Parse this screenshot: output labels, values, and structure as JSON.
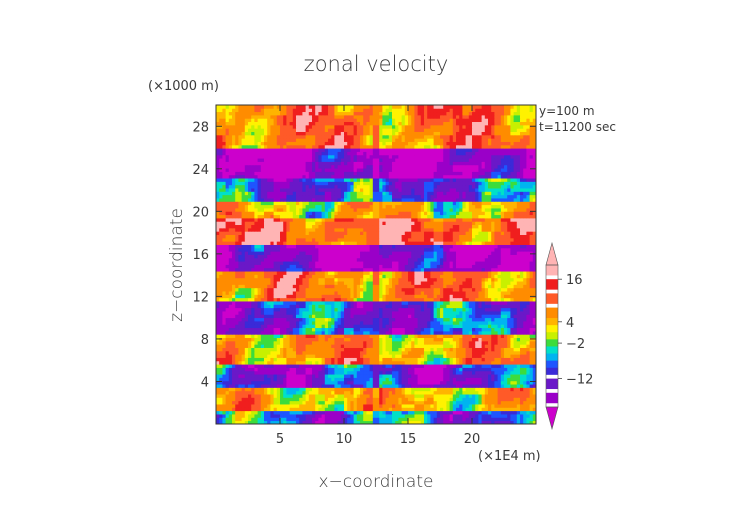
{
  "chart_data": {
    "type": "heatmap",
    "title": "zonal velocity",
    "xlabel": "x−coordinate",
    "ylabel": "z−coordinate",
    "x_scale_note": "(×1E4 m)",
    "y_scale_note": "(×1000 m)",
    "annotations": [
      "y=100 m",
      "t=11200 sec"
    ],
    "xlim": [
      0,
      25
    ],
    "ylim": [
      0,
      30
    ],
    "x_ticks": [
      5,
      10,
      15,
      20
    ],
    "y_ticks": [
      4,
      8,
      12,
      16,
      20,
      24,
      28
    ],
    "colorbar": {
      "levels": [
        -20,
        -16,
        -12,
        -8,
        -6,
        -4,
        -2,
        0,
        2,
        4,
        6,
        8,
        12,
        16,
        20
      ],
      "colors": [
        "#cc00cc",
        "#9a00c8",
        "#6a18c8",
        "#3a2ad8",
        "#1e55ff",
        "#00b4f0",
        "#00e0c8",
        "#3cdc3c",
        "#c8f000",
        "#fff200",
        "#ffb400",
        "#ff8c00",
        "#ff5a28",
        "#f01e1e",
        "#ffb4b4"
      ],
      "labels": [
        {
          "text": "16",
          "value": 16
        },
        {
          "text": "4",
          "value": 4
        },
        {
          "text": "−2",
          "value": -2
        },
        {
          "text": "−12",
          "value": -12
        }
      ]
    },
    "bands": [
      {
        "z": [
          0,
          1.3
        ],
        "mean": -5
      },
      {
        "z": [
          1.3,
          3.5
        ],
        "mean": 7
      },
      {
        "z": [
          3.5,
          5.5
        ],
        "mean": -9
      },
      {
        "z": [
          5.5,
          8.5
        ],
        "mean": 9
      },
      {
        "z": [
          8.5,
          11.5
        ],
        "mean": -7
      },
      {
        "z": [
          11.5,
          14.5
        ],
        "mean": 11
      },
      {
        "z": [
          14.5,
          17
        ],
        "mean": -14
      },
      {
        "z": [
          17,
          19.5
        ],
        "mean": 15
      },
      {
        "z": [
          19.5,
          21
        ],
        "mean": 6
      },
      {
        "z": [
          21,
          23
        ],
        "mean": -6
      },
      {
        "z": [
          23,
          26
        ],
        "mean": -16
      },
      {
        "z": [
          26,
          30
        ],
        "mean": 12
      }
    ]
  }
}
